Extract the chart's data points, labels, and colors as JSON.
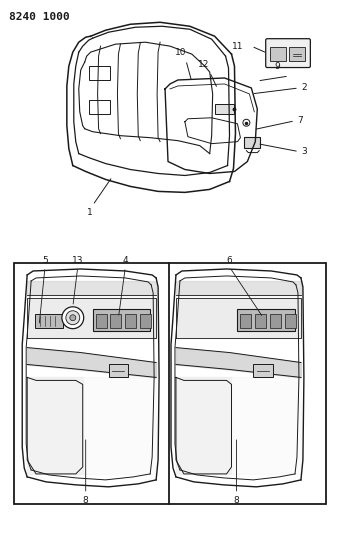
{
  "title": "8240 1000",
  "background_color": "#ffffff",
  "line_color": "#1a1a1a",
  "figsize": [
    3.41,
    5.33
  ],
  "dpi": 100
}
